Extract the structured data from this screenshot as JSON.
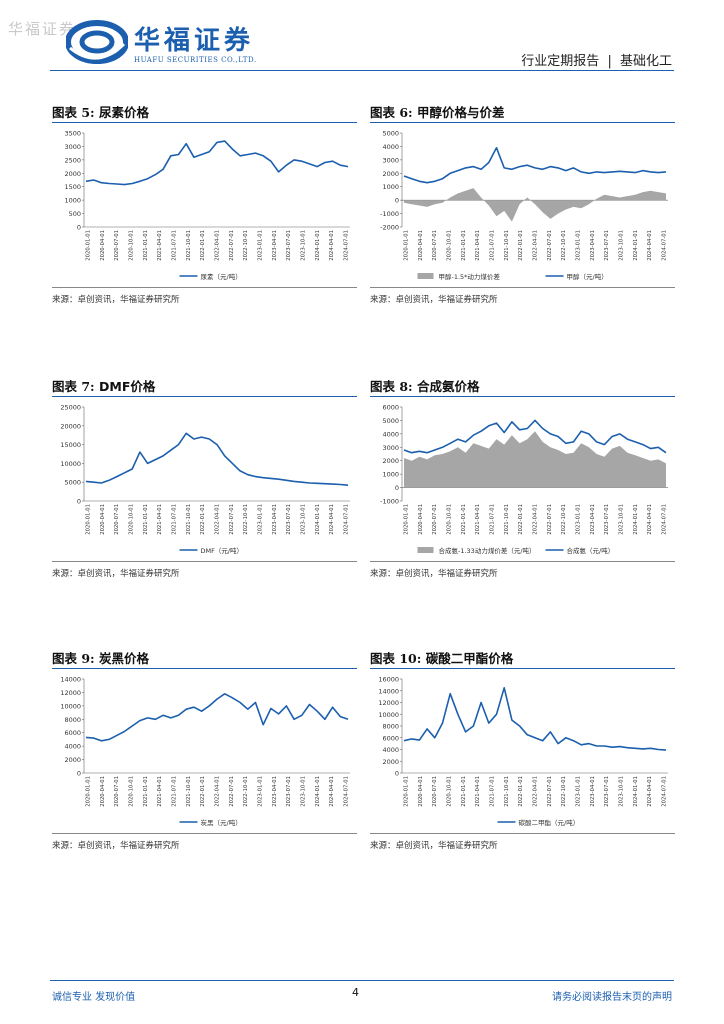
{
  "header": {
    "watermark": "华福证券",
    "company_cn": "华福证券",
    "company_en": "HUAFU SECURITIES CO.,LTD.",
    "report_type": "行业定期报告",
    "separator": "|",
    "sector": "基础化工",
    "brand_color": "#1b5fae"
  },
  "panels": [
    {
      "label": "图表 5:",
      "title": "尿素价格",
      "source": "来源：卓创资讯，华福证券研究所"
    },
    {
      "label": "图表 6:",
      "title": "甲醇价格与价差",
      "source": "来源：卓创资讯，华福证券研究所"
    },
    {
      "label": "图表 7:",
      "title": "DMF价格",
      "source": "来源：卓创资讯，华福证券研究所"
    },
    {
      "label": "图表 8:",
      "title": "合成氨价格",
      "source": "来源：卓创资讯，华福证券研究所"
    },
    {
      "label": "图表 9:",
      "title": "炭黑价格",
      "source": "来源：卓创资讯，华福证券研究所"
    },
    {
      "label": "图表 10:",
      "title": "碳酸二甲酯价格",
      "source": "来源：卓创资讯，华福证券研究所"
    }
  ],
  "footer": {
    "left": "诚信专业  发现价值",
    "page": "4",
    "right": "请务必阅读报告末页的声明"
  },
  "chart_data": [
    {
      "type": "line",
      "title": "尿素价格",
      "ylim": [
        0,
        3500
      ],
      "yticks": [
        0,
        500,
        1000,
        1500,
        2000,
        2500,
        3000,
        3500
      ],
      "ytick_labels": [
        "0",
        "500",
        "1000",
        "1500",
        "2000",
        "2500",
        "3000",
        "3500"
      ],
      "xtick_labels": [
        "2020-01-01",
        "2020-04-01",
        "2020-07-01",
        "2020-10-01",
        "2021-01-01",
        "2021-04-01",
        "2021-07-01",
        "2021-10-01",
        "2022-01-01",
        "2022-04-01",
        "2022-07-01",
        "2022-10-01",
        "2023-01-01",
        "2023-04-01",
        "2023-07-01",
        "2023-10-01",
        "2024-01-01",
        "2024-04-01",
        "2024-07-01"
      ],
      "series": [
        {
          "name": "尿素（元/吨）",
          "kind": "line",
          "color": "#1b5fae",
          "values": [
            1700,
            1750,
            1650,
            1620,
            1600,
            1580,
            1620,
            1700,
            1800,
            1950,
            2150,
            2650,
            2700,
            3100,
            2600,
            2700,
            2800,
            3150,
            3200,
            2900,
            2650,
            2700,
            2750,
            2650,
            2450,
            2050,
            2300,
            2500,
            2450,
            2350,
            2250,
            2400,
            2450,
            2300,
            2250
          ]
        }
      ],
      "legend": "bottom"
    },
    {
      "type": "line",
      "title": "甲醇价格与价差",
      "ylim": [
        -2000,
        5000
      ],
      "yticks": [
        -2000,
        -1000,
        0,
        1000,
        2000,
        3000,
        4000,
        5000
      ],
      "ytick_labels": [
        "-2000",
        "-1000",
        "0",
        "1000",
        "2000",
        "3000",
        "4000",
        "5000"
      ],
      "xtick_labels": [
        "2020-01-01",
        "2020-04-01",
        "2020-07-01",
        "2020-10-01",
        "2021-01-01",
        "2021-04-01",
        "2021-07-01",
        "2021-10-01",
        "2022-01-01",
        "2022-04-01",
        "2022-07-01",
        "2022-10-01",
        "2023-01-01",
        "2023-04-01",
        "2023-07-01",
        "2023-10-01",
        "2024-01-01",
        "2024-04-01",
        "2024-07-01"
      ],
      "series": [
        {
          "name": "甲醇-1.5*动力煤价差",
          "kind": "area",
          "color": "#a6a6a6",
          "values": [
            -200,
            -300,
            -400,
            -500,
            -300,
            -200,
            200,
            500,
            700,
            900,
            200,
            -400,
            -1200,
            -800,
            -1600,
            -300,
            200,
            -300,
            -900,
            -1400,
            -1000,
            -700,
            -500,
            -600,
            -300,
            100,
            400,
            300,
            200,
            300,
            400,
            600,
            700,
            600,
            500
          ]
        },
        {
          "name": "甲醇（元/吨）",
          "kind": "line",
          "color": "#1b5fae",
          "values": [
            1800,
            1600,
            1400,
            1300,
            1400,
            1600,
            2000,
            2200,
            2400,
            2500,
            2300,
            2800,
            3900,
            2400,
            2300,
            2500,
            2600,
            2400,
            2300,
            2500,
            2400,
            2200,
            2400,
            2100,
            2000,
            2100,
            2050,
            2100,
            2150,
            2100,
            2050,
            2200,
            2100,
            2050,
            2100
          ]
        }
      ],
      "legend": "bottom"
    },
    {
      "type": "line",
      "title": "DMF价格",
      "ylim": [
        0,
        25000
      ],
      "yticks": [
        0,
        5000,
        10000,
        15000,
        20000,
        25000
      ],
      "ytick_labels": [
        "0",
        "5000",
        "10000",
        "15000",
        "20000",
        "25000"
      ],
      "xtick_labels": [
        "2020-01-01",
        "2020-04-01",
        "2020-07-01",
        "2020-10-01",
        "2021-01-01",
        "2021-04-01",
        "2021-07-01",
        "2021-10-01",
        "2022-01-01",
        "2022-04-01",
        "2022-07-01",
        "2022-10-01",
        "2023-01-01",
        "2023-04-01",
        "2023-07-01",
        "2023-10-01",
        "2024-01-01",
        "2024-04-01",
        "2024-07-01"
      ],
      "series": [
        {
          "name": "DMF（元/吨）",
          "kind": "line",
          "color": "#1b5fae",
          "values": [
            5200,
            5000,
            4800,
            5500,
            6500,
            7500,
            8500,
            13000,
            10000,
            11000,
            12000,
            13500,
            15000,
            18000,
            16500,
            17000,
            16500,
            15000,
            12000,
            10000,
            8000,
            7000,
            6500,
            6200,
            6000,
            5800,
            5500,
            5200,
            5000,
            4800,
            4700,
            4600,
            4500,
            4400,
            4200
          ]
        }
      ],
      "legend": "bottom"
    },
    {
      "type": "area",
      "title": "合成氨价格",
      "ylim": [
        -1000,
        6000
      ],
      "yticks": [
        -1000,
        0,
        1000,
        2000,
        3000,
        4000,
        5000,
        6000
      ],
      "ytick_labels": [
        "-1000",
        "0",
        "1000",
        "2000",
        "3000",
        "4000",
        "5000",
        "6000"
      ],
      "xtick_labels": [
        "2020-01-01",
        "2020-04-01",
        "2020-07-01",
        "2020-10-01",
        "2021-01-01",
        "2021-04-01",
        "2021-07-01",
        "2021-10-01",
        "2022-01-01",
        "2022-04-01",
        "2022-07-01",
        "2022-10-01",
        "2023-01-01",
        "2023-04-01",
        "2023-07-01",
        "2023-10-01",
        "2024-01-01",
        "2024-04-01",
        "2024-07-01"
      ],
      "series": [
        {
          "name": "合成氨-1.33动力煤价差（元/吨）",
          "kind": "area",
          "color": "#a6a6a6",
          "values": [
            2200,
            2000,
            2300,
            2100,
            2400,
            2500,
            2700,
            3000,
            2600,
            3300,
            3100,
            2900,
            3600,
            3200,
            3900,
            3300,
            3600,
            4200,
            3400,
            3000,
            2800,
            2500,
            2600,
            3300,
            3000,
            2500,
            2300,
            2900,
            3100,
            2600,
            2400,
            2200,
            2000,
            2100,
            1800
          ]
        },
        {
          "name": "合成氨（元/吨）",
          "kind": "line",
          "color": "#1b5fae",
          "values": [
            2800,
            2600,
            2700,
            2600,
            2800,
            3000,
            3300,
            3600,
            3400,
            3900,
            4200,
            4600,
            4800,
            4100,
            4900,
            4300,
            4400,
            5000,
            4400,
            4000,
            3800,
            3300,
            3400,
            4200,
            4000,
            3400,
            3200,
            3800,
            4000,
            3600,
            3400,
            3200,
            2900,
            3000,
            2600
          ]
        }
      ],
      "legend": "bottom"
    },
    {
      "type": "line",
      "title": "炭黑价格",
      "ylim": [
        0,
        14000
      ],
      "yticks": [
        0,
        2000,
        4000,
        6000,
        8000,
        10000,
        12000,
        14000
      ],
      "ytick_labels": [
        "0",
        "2000",
        "4000",
        "6000",
        "8000",
        "10000",
        "12000",
        "14000"
      ],
      "xtick_labels": [
        "2020-01-01",
        "2020-04-01",
        "2020-07-01",
        "2020-10-01",
        "2021-01-01",
        "2021-04-01",
        "2021-07-01",
        "2021-10-01",
        "2022-01-01",
        "2022-04-01",
        "2022-07-01",
        "2022-10-01",
        "2023-01-01",
        "2023-04-01",
        "2023-07-01",
        "2023-10-01",
        "2024-01-01",
        "2024-04-01",
        "2024-07-01"
      ],
      "series": [
        {
          "name": "炭黑（元/吨）",
          "kind": "line",
          "color": "#1b5fae",
          "values": [
            5300,
            5200,
            4800,
            5000,
            5600,
            6200,
            7000,
            7800,
            8200,
            8000,
            8600,
            8200,
            8600,
            9500,
            9800,
            9200,
            10000,
            11000,
            11800,
            11200,
            10500,
            9500,
            10500,
            7200,
            9600,
            8800,
            10000,
            8000,
            8600,
            10200,
            9200,
            8000,
            9800,
            8400,
            8000
          ]
        }
      ],
      "legend": "bottom"
    },
    {
      "type": "line",
      "title": "碳酸二甲酯价格",
      "ylim": [
        0,
        16000
      ],
      "yticks": [
        0,
        2000,
        4000,
        6000,
        8000,
        10000,
        12000,
        14000,
        16000
      ],
      "ytick_labels": [
        "0",
        "2000",
        "4000",
        "6000",
        "8000",
        "10000",
        "12000",
        "14000",
        "16000"
      ],
      "xtick_labels": [
        "2020-01-01",
        "2020-04-01",
        "2020-07-01",
        "2020-10-01",
        "2021-01-01",
        "2021-04-01",
        "2021-07-01",
        "2021-10-01",
        "2022-01-01",
        "2022-04-01",
        "2022-07-01",
        "2022-10-01",
        "2023-01-01",
        "2023-04-01",
        "2023-07-01",
        "2023-10-01",
        "2024-01-01",
        "2024-04-01",
        "2024-07-01"
      ],
      "series": [
        {
          "name": "碳酸二甲酯（元/吨）",
          "kind": "line",
          "color": "#1b5fae",
          "values": [
            5500,
            5800,
            5600,
            7500,
            6000,
            8500,
            13500,
            10000,
            7000,
            8000,
            12000,
            8500,
            10000,
            14500,
            9000,
            8000,
            6500,
            6000,
            5500,
            7000,
            5000,
            6000,
            5500,
            4800,
            5000,
            4600,
            4600,
            4400,
            4500,
            4300,
            4200,
            4100,
            4200,
            4000,
            3900
          ]
        }
      ],
      "legend": "bottom"
    }
  ]
}
